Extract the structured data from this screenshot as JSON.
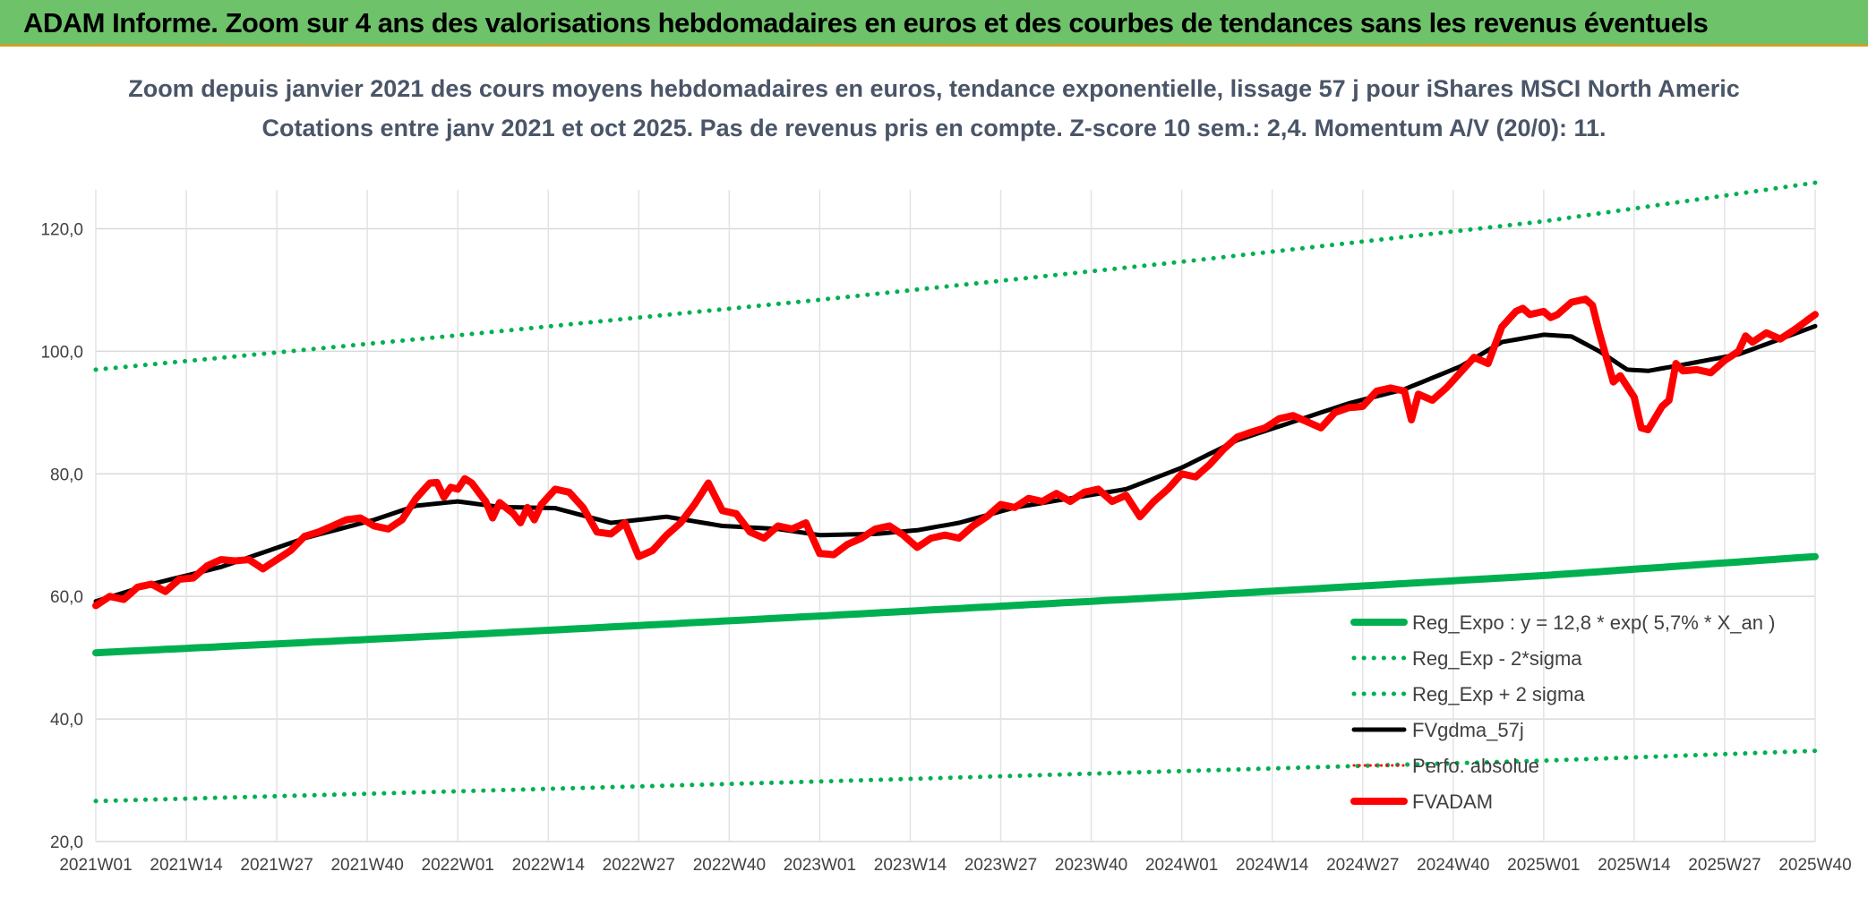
{
  "banner": {
    "title": "ADAM Informe. Zoom sur 4 ans des valorisations hebdomadaires en euros et des courbes de tendances sans les revenus éventuels"
  },
  "colors": {
    "banner_bg": "#6ec26a",
    "reg_green": "#00b050",
    "fvgdma": "#000000",
    "fvadam": "#ff0000",
    "perfo": "#ff0000"
  },
  "chart_data": {
    "type": "line",
    "title": "Zoom depuis janvier 2021 des cours moyens hebdomadaires en euros, tendance exponentielle, lissage 57 j pour iShares MSCI North Americ",
    "subtitle": "Cotations entre janv 2021 et oct 2025. Pas de revenus pris en compte. Z-score 10 sem.: 2,4. Momentum A/V (20/0): 11.",
    "xlabel": "",
    "ylabel": "",
    "ylim": [
      20,
      130
    ],
    "yticks": [
      "20,0",
      "40,0",
      "60,0",
      "80,0",
      "100,0",
      "120,0"
    ],
    "ytick_values": [
      20,
      40,
      60,
      80,
      100,
      120
    ],
    "x_tick_labels": [
      "2021W01",
      "2021W14",
      "2021W27",
      "2021W40",
      "2022W01",
      "2022W14",
      "2022W27",
      "2022W40",
      "2023W01",
      "2023W14",
      "2023W27",
      "2023W40",
      "2024W01",
      "2024W14",
      "2024W27",
      "2024W40",
      "2025W01",
      "2025W14",
      "2025W27",
      "2025W40"
    ],
    "x_tick_index": [
      0,
      13,
      26,
      39,
      52,
      65,
      78,
      91,
      104,
      117,
      130,
      143,
      156,
      169,
      182,
      195,
      208,
      221,
      234,
      247
    ],
    "x_count": 248,
    "grid": true,
    "legend_position": "bottom-right",
    "series": [
      {
        "name": "Reg_Expo : y = 12,8 * exp( 5,7% *  X_an )",
        "style": "solid-thick",
        "color": "#00b050",
        "keypoints": [
          [
            0,
            50.8
          ],
          [
            52,
            53.7
          ],
          [
            104,
            56.8
          ],
          [
            156,
            60.0
          ],
          [
            208,
            63.4
          ],
          [
            247,
            66.5
          ]
        ]
      },
      {
        "name": "Reg_Exp - 2*sigma",
        "style": "dotted",
        "color": "#00b050",
        "keypoints": [
          [
            0,
            26.6
          ],
          [
            52,
            28.2
          ],
          [
            104,
            29.8
          ],
          [
            156,
            31.5
          ],
          [
            208,
            33.2
          ],
          [
            247,
            34.8
          ]
        ]
      },
      {
        "name": "Reg_Exp + 2 sigma",
        "style": "dotted",
        "color": "#00b050",
        "keypoints": [
          [
            0,
            97.0
          ],
          [
            52,
            102.6
          ],
          [
            104,
            108.4
          ],
          [
            156,
            114.6
          ],
          [
            208,
            121.2
          ],
          [
            247,
            127.5
          ]
        ]
      },
      {
        "name": "FVgdma_57j",
        "style": "solid",
        "color": "#000000",
        "keypoints": [
          [
            0,
            59.2
          ],
          [
            8,
            62.0
          ],
          [
            18,
            64.8
          ],
          [
            30,
            69.5
          ],
          [
            40,
            72.5
          ],
          [
            46,
            74.8
          ],
          [
            52,
            75.5
          ],
          [
            58,
            74.6
          ],
          [
            66,
            74.4
          ],
          [
            74,
            72.0
          ],
          [
            82,
            73.0
          ],
          [
            90,
            71.5
          ],
          [
            98,
            71.0
          ],
          [
            104,
            70.0
          ],
          [
            112,
            70.2
          ],
          [
            118,
            70.8
          ],
          [
            124,
            72.0
          ],
          [
            132,
            74.5
          ],
          [
            140,
            76.0
          ],
          [
            148,
            77.5
          ],
          [
            156,
            81.0
          ],
          [
            164,
            85.5
          ],
          [
            172,
            88.5
          ],
          [
            180,
            91.5
          ],
          [
            188,
            93.8
          ],
          [
            196,
            97.5
          ],
          [
            202,
            101.5
          ],
          [
            208,
            102.7
          ],
          [
            212,
            102.4
          ],
          [
            216,
            100.0
          ],
          [
            220,
            97.0
          ],
          [
            223,
            96.8
          ],
          [
            228,
            97.8
          ],
          [
            236,
            99.5
          ],
          [
            242,
            102.0
          ],
          [
            247,
            104.1
          ]
        ]
      },
      {
        "name": "Perfo. absolue",
        "style": "dotted-thin",
        "color": "#ff0000",
        "keypoints": []
      },
      {
        "name": "FVADAM",
        "style": "solid-thick",
        "color": "#ff0000",
        "keypoints": [
          [
            0,
            58.5
          ],
          [
            2,
            60.0
          ],
          [
            4,
            59.5
          ],
          [
            6,
            61.5
          ],
          [
            8,
            62.0
          ],
          [
            10,
            60.8
          ],
          [
            12,
            62.8
          ],
          [
            14,
            63.0
          ],
          [
            16,
            65.0
          ],
          [
            18,
            66.0
          ],
          [
            20,
            65.8
          ],
          [
            22,
            66.0
          ],
          [
            24,
            64.5
          ],
          [
            26,
            66.0
          ],
          [
            28,
            67.5
          ],
          [
            30,
            69.8
          ],
          [
            32,
            70.5
          ],
          [
            34,
            71.5
          ],
          [
            36,
            72.5
          ],
          [
            38,
            72.8
          ],
          [
            40,
            71.5
          ],
          [
            42,
            71.0
          ],
          [
            44,
            72.5
          ],
          [
            46,
            76.0
          ],
          [
            48,
            78.5
          ],
          [
            49,
            78.6
          ],
          [
            50,
            76.2
          ],
          [
            51,
            77.8
          ],
          [
            52,
            77.5
          ],
          [
            53,
            79.2
          ],
          [
            54,
            78.5
          ],
          [
            56,
            75.5
          ],
          [
            57,
            72.8
          ],
          [
            58,
            75.3
          ],
          [
            60,
            73.5
          ],
          [
            61,
            72.0
          ],
          [
            62,
            74.5
          ],
          [
            63,
            72.5
          ],
          [
            64,
            75.0
          ],
          [
            66,
            77.5
          ],
          [
            68,
            77.0
          ],
          [
            70,
            74.5
          ],
          [
            72,
            70.5
          ],
          [
            74,
            70.2
          ],
          [
            76,
            72.0
          ],
          [
            78,
            66.5
          ],
          [
            80,
            67.5
          ],
          [
            82,
            70.0
          ],
          [
            84,
            72.0
          ],
          [
            86,
            75.0
          ],
          [
            88,
            78.5
          ],
          [
            90,
            74.0
          ],
          [
            92,
            73.5
          ],
          [
            94,
            70.5
          ],
          [
            96,
            69.5
          ],
          [
            98,
            71.5
          ],
          [
            100,
            71.0
          ],
          [
            102,
            72.0
          ],
          [
            104,
            67.0
          ],
          [
            106,
            66.8
          ],
          [
            108,
            68.5
          ],
          [
            110,
            69.5
          ],
          [
            112,
            71.0
          ],
          [
            114,
            71.5
          ],
          [
            116,
            70.0
          ],
          [
            118,
            68.0
          ],
          [
            120,
            69.5
          ],
          [
            122,
            70.0
          ],
          [
            124,
            69.5
          ],
          [
            126,
            71.5
          ],
          [
            128,
            73.0
          ],
          [
            130,
            75.0
          ],
          [
            132,
            74.5
          ],
          [
            134,
            76.0
          ],
          [
            136,
            75.5
          ],
          [
            138,
            76.8
          ],
          [
            140,
            75.5
          ],
          [
            142,
            77.0
          ],
          [
            144,
            77.5
          ],
          [
            146,
            75.5
          ],
          [
            148,
            76.5
          ],
          [
            150,
            73.0
          ],
          [
            152,
            75.5
          ],
          [
            154,
            77.5
          ],
          [
            156,
            80.0
          ],
          [
            158,
            79.5
          ],
          [
            160,
            81.5
          ],
          [
            162,
            84.0
          ],
          [
            164,
            86.0
          ],
          [
            166,
            86.8
          ],
          [
            168,
            87.5
          ],
          [
            170,
            89.0
          ],
          [
            172,
            89.5
          ],
          [
            174,
            88.5
          ],
          [
            176,
            87.5
          ],
          [
            178,
            90.0
          ],
          [
            180,
            90.8
          ],
          [
            182,
            91.0
          ],
          [
            184,
            93.5
          ],
          [
            186,
            94.0
          ],
          [
            188,
            93.5
          ],
          [
            189,
            88.8
          ],
          [
            190,
            93.0
          ],
          [
            192,
            92.0
          ],
          [
            194,
            94.0
          ],
          [
            196,
            96.5
          ],
          [
            198,
            99.0
          ],
          [
            200,
            98.0
          ],
          [
            202,
            104.0
          ],
          [
            204,
            106.5
          ],
          [
            205,
            107.0
          ],
          [
            206,
            106.0
          ],
          [
            208,
            106.5
          ],
          [
            209,
            105.5
          ],
          [
            210,
            106.0
          ],
          [
            212,
            108.0
          ],
          [
            214,
            108.5
          ],
          [
            215,
            107.5
          ],
          [
            216,
            103.0
          ],
          [
            218,
            95.0
          ],
          [
            219,
            96.0
          ],
          [
            221,
            92.5
          ],
          [
            222,
            87.5
          ],
          [
            223,
            87.2
          ],
          [
            225,
            91.0
          ],
          [
            226,
            92.0
          ],
          [
            227,
            98.0
          ],
          [
            228,
            96.8
          ],
          [
            230,
            97.0
          ],
          [
            232,
            96.5
          ],
          [
            234,
            98.5
          ],
          [
            236,
            100.0
          ],
          [
            237,
            102.5
          ],
          [
            238,
            101.5
          ],
          [
            240,
            103.0
          ],
          [
            242,
            102.0
          ],
          [
            244,
            103.5
          ],
          [
            247,
            106.0
          ]
        ]
      }
    ]
  }
}
